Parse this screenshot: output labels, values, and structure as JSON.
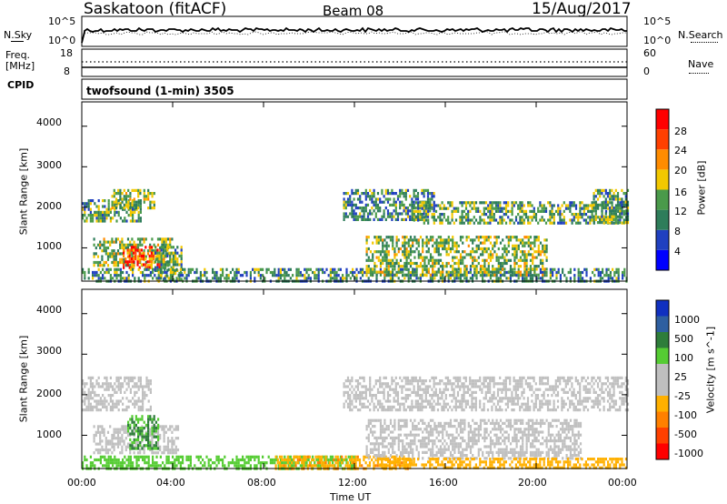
{
  "header": {
    "station": "Saskatoon (fitACF)",
    "beam": "Beam 08",
    "date": "15/Aug/2017"
  },
  "noise_panel": {
    "left_label": "N.Sky",
    "right_label": "N.Search",
    "left_ticks": [
      "10^5",
      "10^0"
    ],
    "right_ticks": [
      "10^5",
      "10^0"
    ]
  },
  "freq_panel": {
    "left_label_1": "Freq.",
    "left_label_2": "[MHz]",
    "right_label": "Nave",
    "left_ticks": [
      "18",
      "8"
    ],
    "right_ticks": [
      "60",
      "0"
    ]
  },
  "cpid_panel": {
    "label": "CPID",
    "text": "twofsound (1-min) 3505"
  },
  "colors": {
    "power_scale": [
      "#0000ff",
      "#2040c0",
      "#2e7d5a",
      "#4a9a4a",
      "#f2c800",
      "#ff8c00",
      "#ff4000",
      "#ff0000"
    ],
    "velocity_scale": [
      "#1030c0",
      "#2e5fa0",
      "#2e7d3a",
      "#55cc33",
      "#bfbfbf",
      "#bfbfbf",
      "#ffb000",
      "#ff8000",
      "#ff4000",
      "#ff0000"
    ],
    "ground_scatter": "#c0c0c0"
  },
  "chart_data": [
    {
      "type": "heatmap",
      "panel": "power",
      "ylabel": "Slant Range [km]",
      "xlabel": "Time UT",
      "x_ticks": [
        "00:00",
        "04:00",
        "08:00",
        "12:00",
        "16:00",
        "20:00",
        "00:00"
      ],
      "y_ticks": [
        "1000",
        "2000",
        "3000",
        "4000"
      ],
      "xlim": [
        0,
        24
      ],
      "ylim": [
        180,
        4600
      ],
      "colorbar": {
        "label": "Power [dB]",
        "ticks": [
          "4",
          "8",
          "12",
          "16",
          "20",
          "24",
          "28"
        ],
        "range": [
          0,
          30
        ]
      },
      "regions": [
        {
          "t0": 0.0,
          "t1": 2.6,
          "r0": 1650,
          "r1": 2200,
          "level": 12
        },
        {
          "t0": 1.3,
          "t1": 3.2,
          "r0": 2000,
          "r1": 2450,
          "level": 14
        },
        {
          "t0": 0.5,
          "t1": 4.0,
          "r0": 550,
          "r1": 1250,
          "level": 14
        },
        {
          "t0": 1.8,
          "t1": 3.4,
          "r0": 500,
          "r1": 1050,
          "level": 26
        },
        {
          "t0": 3.2,
          "t1": 4.4,
          "r0": 200,
          "r1": 1050,
          "level": 12
        },
        {
          "t0": 0.0,
          "t1": 24.0,
          "r0": 180,
          "r1": 500,
          "level": 10
        },
        {
          "t0": 11.5,
          "t1": 15.5,
          "r0": 1700,
          "r1": 2450,
          "level": 10
        },
        {
          "t0": 14.5,
          "t1": 24.0,
          "r0": 1600,
          "r1": 2150,
          "level": 12
        },
        {
          "t0": 12.5,
          "t1": 20.5,
          "r0": 300,
          "r1": 1300,
          "level": 14
        },
        {
          "t0": 22.5,
          "t1": 24.0,
          "r0": 1650,
          "r1": 2450,
          "level": 12
        }
      ]
    },
    {
      "type": "heatmap",
      "panel": "velocity",
      "ylabel": "Slant Range [km]",
      "xlabel": "Time UT",
      "x_ticks": [
        "00:00",
        "04:00",
        "08:00",
        "12:00",
        "16:00",
        "20:00",
        "00:00"
      ],
      "y_ticks": [
        "1000",
        "2000",
        "3000",
        "4000"
      ],
      "xlim": [
        0,
        24
      ],
      "ylim": [
        180,
        4600
      ],
      "colorbar": {
        "label": "Velocity [m s^-1]",
        "ticks": [
          "1000",
          "500",
          "100",
          "25",
          "-25",
          "-100",
          "-500",
          "-1000"
        ]
      },
      "regions": [
        {
          "t0": 0.0,
          "t1": 3.0,
          "r0": 1600,
          "r1": 2450,
          "level": "gs"
        },
        {
          "t0": 0.5,
          "t1": 4.2,
          "r0": 550,
          "r1": 1250,
          "level": "gs"
        },
        {
          "t0": 2.0,
          "t1": 3.4,
          "r0": 650,
          "r1": 1500,
          "level": 100
        },
        {
          "t0": 0.0,
          "t1": 12.0,
          "r0": 180,
          "r1": 500,
          "level": 60
        },
        {
          "t0": 8.5,
          "t1": 14.5,
          "r0": 180,
          "r1": 500,
          "level": -80
        },
        {
          "t0": 11.5,
          "t1": 24.0,
          "r0": 1600,
          "r1": 2450,
          "level": "gs"
        },
        {
          "t0": 12.5,
          "t1": 22.0,
          "r0": 400,
          "r1": 1400,
          "level": "gs"
        },
        {
          "t0": 13.0,
          "t1": 24.0,
          "r0": 180,
          "r1": 450,
          "level": -60
        }
      ]
    }
  ]
}
